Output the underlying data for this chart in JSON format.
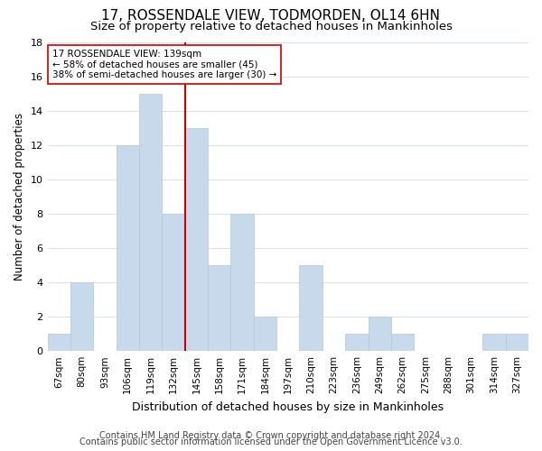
{
  "title": "17, ROSSENDALE VIEW, TODMORDEN, OL14 6HN",
  "subtitle": "Size of property relative to detached houses in Mankinholes",
  "xlabel": "Distribution of detached houses by size in Mankinholes",
  "ylabel": "Number of detached properties",
  "categories": [
    "67sqm",
    "80sqm",
    "93sqm",
    "106sqm",
    "119sqm",
    "132sqm",
    "145sqm",
    "158sqm",
    "171sqm",
    "184sqm",
    "197sqm",
    "210sqm",
    "223sqm",
    "236sqm",
    "249sqm",
    "262sqm",
    "275sqm",
    "288sqm",
    "301sqm",
    "314sqm",
    "327sqm"
  ],
  "values": [
    1,
    4,
    0,
    12,
    15,
    8,
    13,
    5,
    8,
    2,
    0,
    5,
    0,
    1,
    2,
    1,
    0,
    0,
    0,
    1,
    1
  ],
  "bar_color": "#c8d9ec",
  "bar_edge_color": "#b0c8e0",
  "vline_color": "#cc0000",
  "annotation_line1": "17 ROSSENDALE VIEW: 139sqm",
  "annotation_line2": "← 58% of detached houses are smaller (45)",
  "annotation_line3": "38% of semi-detached houses are larger (30) →",
  "annotation_box_edgecolor": "#cc0000",
  "ylim": [
    0,
    18
  ],
  "yticks": [
    0,
    2,
    4,
    6,
    8,
    10,
    12,
    14,
    16,
    18
  ],
  "footer1": "Contains HM Land Registry data © Crown copyright and database right 2024.",
  "footer2": "Contains public sector information licensed under the Open Government Licence v3.0.",
  "title_fontsize": 11,
  "subtitle_fontsize": 9.5,
  "xlabel_fontsize": 9,
  "ylabel_fontsize": 8.5,
  "annotation_fontsize": 7.5,
  "footer_fontsize": 7,
  "background_color": "#ffffff",
  "grid_color": "#d0dce8"
}
